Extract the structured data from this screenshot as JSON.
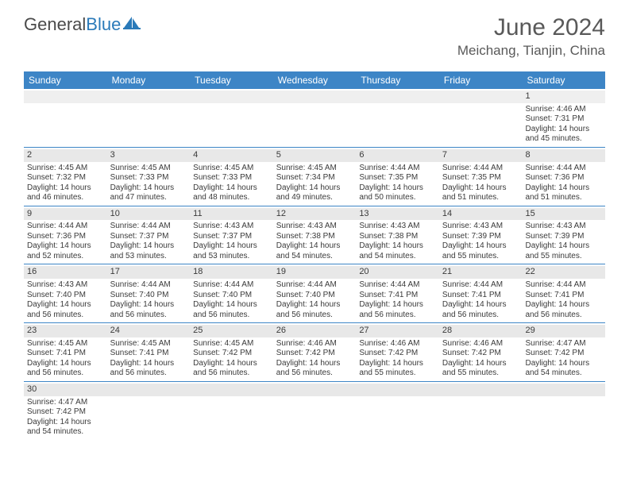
{
  "logo": {
    "text1": "General",
    "text2": "Blue"
  },
  "title": "June 2024",
  "location": "Meichang, Tianjin, China",
  "colors": {
    "header_bg": "#3d85c6",
    "header_text": "#ffffff",
    "daynum_bg": "#e8e8e8",
    "text": "#3a3a3a",
    "title_text": "#595959",
    "border": "#3d85c6"
  },
  "day_names": [
    "Sunday",
    "Monday",
    "Tuesday",
    "Wednesday",
    "Thursday",
    "Friday",
    "Saturday"
  ],
  "weeks": [
    [
      {
        "n": "",
        "empty": true
      },
      {
        "n": "",
        "empty": true
      },
      {
        "n": "",
        "empty": true
      },
      {
        "n": "",
        "empty": true
      },
      {
        "n": "",
        "empty": true
      },
      {
        "n": "",
        "empty": true
      },
      {
        "n": "1",
        "sr": "Sunrise: 4:46 AM",
        "ss": "Sunset: 7:31 PM",
        "d1": "Daylight: 14 hours",
        "d2": "and 45 minutes."
      }
    ],
    [
      {
        "n": "2",
        "sr": "Sunrise: 4:45 AM",
        "ss": "Sunset: 7:32 PM",
        "d1": "Daylight: 14 hours",
        "d2": "and 46 minutes."
      },
      {
        "n": "3",
        "sr": "Sunrise: 4:45 AM",
        "ss": "Sunset: 7:33 PM",
        "d1": "Daylight: 14 hours",
        "d2": "and 47 minutes."
      },
      {
        "n": "4",
        "sr": "Sunrise: 4:45 AM",
        "ss": "Sunset: 7:33 PM",
        "d1": "Daylight: 14 hours",
        "d2": "and 48 minutes."
      },
      {
        "n": "5",
        "sr": "Sunrise: 4:45 AM",
        "ss": "Sunset: 7:34 PM",
        "d1": "Daylight: 14 hours",
        "d2": "and 49 minutes."
      },
      {
        "n": "6",
        "sr": "Sunrise: 4:44 AM",
        "ss": "Sunset: 7:35 PM",
        "d1": "Daylight: 14 hours",
        "d2": "and 50 minutes."
      },
      {
        "n": "7",
        "sr": "Sunrise: 4:44 AM",
        "ss": "Sunset: 7:35 PM",
        "d1": "Daylight: 14 hours",
        "d2": "and 51 minutes."
      },
      {
        "n": "8",
        "sr": "Sunrise: 4:44 AM",
        "ss": "Sunset: 7:36 PM",
        "d1": "Daylight: 14 hours",
        "d2": "and 51 minutes."
      }
    ],
    [
      {
        "n": "9",
        "sr": "Sunrise: 4:44 AM",
        "ss": "Sunset: 7:36 PM",
        "d1": "Daylight: 14 hours",
        "d2": "and 52 minutes."
      },
      {
        "n": "10",
        "sr": "Sunrise: 4:44 AM",
        "ss": "Sunset: 7:37 PM",
        "d1": "Daylight: 14 hours",
        "d2": "and 53 minutes."
      },
      {
        "n": "11",
        "sr": "Sunrise: 4:43 AM",
        "ss": "Sunset: 7:37 PM",
        "d1": "Daylight: 14 hours",
        "d2": "and 53 minutes."
      },
      {
        "n": "12",
        "sr": "Sunrise: 4:43 AM",
        "ss": "Sunset: 7:38 PM",
        "d1": "Daylight: 14 hours",
        "d2": "and 54 minutes."
      },
      {
        "n": "13",
        "sr": "Sunrise: 4:43 AM",
        "ss": "Sunset: 7:38 PM",
        "d1": "Daylight: 14 hours",
        "d2": "and 54 minutes."
      },
      {
        "n": "14",
        "sr": "Sunrise: 4:43 AM",
        "ss": "Sunset: 7:39 PM",
        "d1": "Daylight: 14 hours",
        "d2": "and 55 minutes."
      },
      {
        "n": "15",
        "sr": "Sunrise: 4:43 AM",
        "ss": "Sunset: 7:39 PM",
        "d1": "Daylight: 14 hours",
        "d2": "and 55 minutes."
      }
    ],
    [
      {
        "n": "16",
        "sr": "Sunrise: 4:43 AM",
        "ss": "Sunset: 7:40 PM",
        "d1": "Daylight: 14 hours",
        "d2": "and 56 minutes."
      },
      {
        "n": "17",
        "sr": "Sunrise: 4:44 AM",
        "ss": "Sunset: 7:40 PM",
        "d1": "Daylight: 14 hours",
        "d2": "and 56 minutes."
      },
      {
        "n": "18",
        "sr": "Sunrise: 4:44 AM",
        "ss": "Sunset: 7:40 PM",
        "d1": "Daylight: 14 hours",
        "d2": "and 56 minutes."
      },
      {
        "n": "19",
        "sr": "Sunrise: 4:44 AM",
        "ss": "Sunset: 7:40 PM",
        "d1": "Daylight: 14 hours",
        "d2": "and 56 minutes."
      },
      {
        "n": "20",
        "sr": "Sunrise: 4:44 AM",
        "ss": "Sunset: 7:41 PM",
        "d1": "Daylight: 14 hours",
        "d2": "and 56 minutes."
      },
      {
        "n": "21",
        "sr": "Sunrise: 4:44 AM",
        "ss": "Sunset: 7:41 PM",
        "d1": "Daylight: 14 hours",
        "d2": "and 56 minutes."
      },
      {
        "n": "22",
        "sr": "Sunrise: 4:44 AM",
        "ss": "Sunset: 7:41 PM",
        "d1": "Daylight: 14 hours",
        "d2": "and 56 minutes."
      }
    ],
    [
      {
        "n": "23",
        "sr": "Sunrise: 4:45 AM",
        "ss": "Sunset: 7:41 PM",
        "d1": "Daylight: 14 hours",
        "d2": "and 56 minutes."
      },
      {
        "n": "24",
        "sr": "Sunrise: 4:45 AM",
        "ss": "Sunset: 7:41 PM",
        "d1": "Daylight: 14 hours",
        "d2": "and 56 minutes."
      },
      {
        "n": "25",
        "sr": "Sunrise: 4:45 AM",
        "ss": "Sunset: 7:42 PM",
        "d1": "Daylight: 14 hours",
        "d2": "and 56 minutes."
      },
      {
        "n": "26",
        "sr": "Sunrise: 4:46 AM",
        "ss": "Sunset: 7:42 PM",
        "d1": "Daylight: 14 hours",
        "d2": "and 56 minutes."
      },
      {
        "n": "27",
        "sr": "Sunrise: 4:46 AM",
        "ss": "Sunset: 7:42 PM",
        "d1": "Daylight: 14 hours",
        "d2": "and 55 minutes."
      },
      {
        "n": "28",
        "sr": "Sunrise: 4:46 AM",
        "ss": "Sunset: 7:42 PM",
        "d1": "Daylight: 14 hours",
        "d2": "and 55 minutes."
      },
      {
        "n": "29",
        "sr": "Sunrise: 4:47 AM",
        "ss": "Sunset: 7:42 PM",
        "d1": "Daylight: 14 hours",
        "d2": "and 54 minutes."
      }
    ],
    [
      {
        "n": "30",
        "sr": "Sunrise: 4:47 AM",
        "ss": "Sunset: 7:42 PM",
        "d1": "Daylight: 14 hours",
        "d2": "and 54 minutes."
      },
      {
        "n": "",
        "empty": true
      },
      {
        "n": "",
        "empty": true
      },
      {
        "n": "",
        "empty": true
      },
      {
        "n": "",
        "empty": true
      },
      {
        "n": "",
        "empty": true
      },
      {
        "n": "",
        "empty": true
      }
    ]
  ]
}
